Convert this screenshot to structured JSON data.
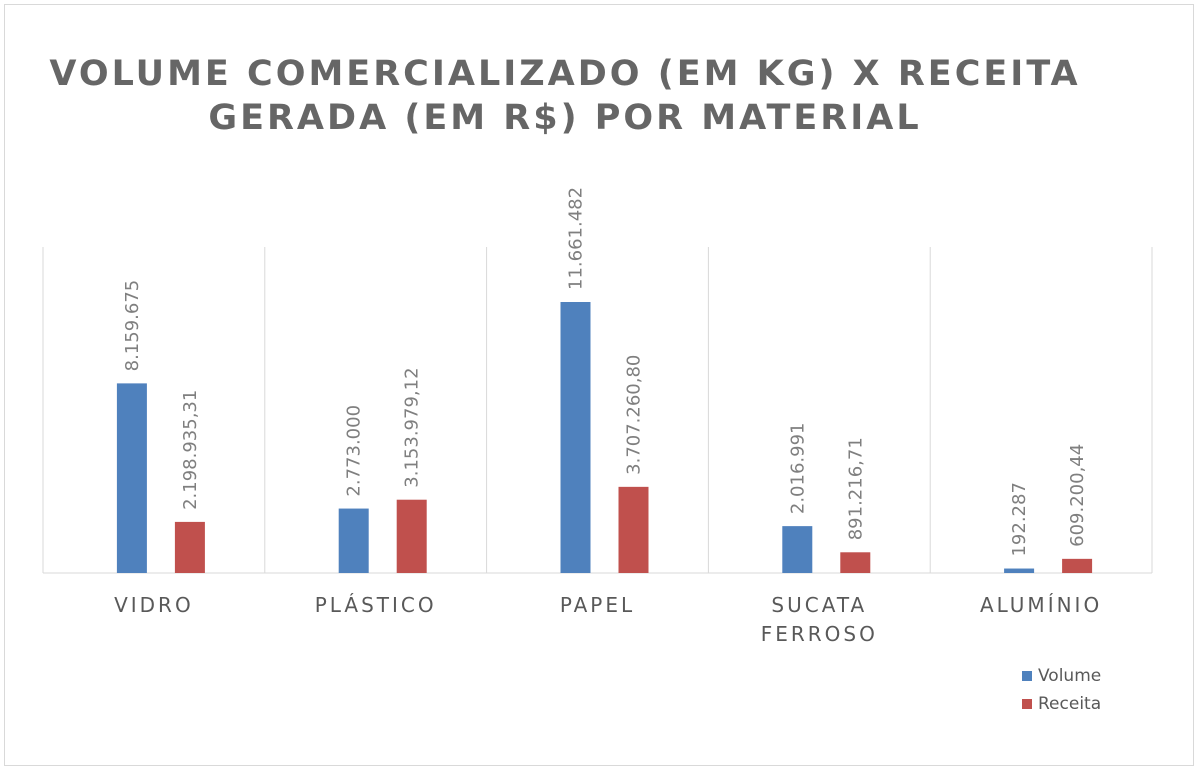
{
  "chart_data": {
    "type": "bar",
    "title": "VOLUME COMERCIALIZADO (EM KG) X RECEITA GERADA (EM R$) POR MATERIAL",
    "categories": [
      "VIDRO",
      "PLÁSTICO",
      "PAPEL",
      "SUCATA FERROSO",
      "ALUMÍNIO"
    ],
    "series": [
      {
        "name": "Volume",
        "color": "#4F81BD",
        "values": [
          8159675,
          2773000,
          11661482,
          2016991,
          192287
        ],
        "labels": [
          "8.159.675",
          "2.773.000",
          "11.661.482",
          "2.016.991",
          "192.287"
        ]
      },
      {
        "name": "Receita",
        "color": "#C0504D",
        "values": [
          2198935.31,
          3153979.12,
          3707260.8,
          891216.71,
          609200.44
        ],
        "labels": [
          "2.198.935,31",
          "3.153.979,12",
          "3.707.260,80",
          "891.216,71",
          "609.200,44"
        ]
      }
    ],
    "xlabel": "",
    "ylabel": "",
    "grid": "vertical",
    "legend": "bottom-right"
  }
}
